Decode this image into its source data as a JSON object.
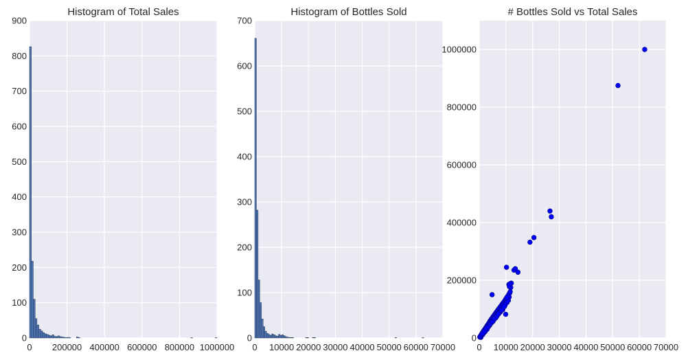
{
  "colors": {
    "panel_bg": "#EAEAF2",
    "grid": "#FFFFFF",
    "bar": "#4C72B0",
    "bar_edge": "#1A2A40",
    "point": "#0000FF",
    "point_edge": "#00007A"
  },
  "chart_data": [
    {
      "type": "bar",
      "title": "Histogram of Total Sales",
      "xlim": [
        0,
        1000000
      ],
      "ylim": [
        0,
        900
      ],
      "xticks": [
        0,
        200000,
        400000,
        600000,
        800000,
        1000000
      ],
      "xtick_labels": [
        "0",
        "200000",
        "400000",
        "600000",
        "800000",
        "1000000"
      ],
      "yticks": [
        0,
        100,
        200,
        300,
        400,
        500,
        600,
        700,
        800,
        900
      ],
      "ytick_labels": [
        "0",
        "100",
        "200",
        "300",
        "400",
        "500",
        "600",
        "700",
        "800",
        "900"
      ],
      "grid": true,
      "bin_edges_start": 0,
      "bin_width": 10000,
      "values": [
        826,
        218,
        110,
        55,
        37,
        25,
        20,
        15,
        12,
        10,
        8,
        6,
        9,
        5,
        4,
        6,
        4,
        3,
        2,
        1,
        2,
        1,
        0,
        0,
        0,
        3,
        1,
        0,
        0,
        0,
        0,
        0,
        0,
        0,
        0,
        0,
        0,
        0,
        0,
        0,
        0,
        0,
        0,
        0,
        0,
        0,
        0,
        0,
        0,
        0,
        0,
        0,
        0,
        0,
        0,
        0,
        0,
        0,
        0,
        0,
        0,
        0,
        0,
        0,
        0,
        0,
        0,
        0,
        0,
        0,
        0,
        0,
        0,
        0,
        0,
        0,
        0,
        0,
        0,
        0,
        0,
        0,
        0,
        0,
        0,
        0,
        1,
        0,
        0,
        0,
        0,
        0,
        0,
        0,
        0,
        0,
        0,
        0,
        0,
        1
      ]
    },
    {
      "type": "bar",
      "title": "Histogram of Bottles Sold",
      "xlim": [
        0,
        70000
      ],
      "ylim": [
        0,
        700
      ],
      "xticks": [
        0,
        10000,
        20000,
        30000,
        40000,
        50000,
        60000,
        70000
      ],
      "xtick_labels": [
        "0",
        "10000",
        "20000",
        "30000",
        "40000",
        "50000",
        "60000",
        "70000"
      ],
      "yticks": [
        0,
        100,
        200,
        300,
        400,
        500,
        600,
        700
      ],
      "ytick_labels": [
        "0",
        "100",
        "200",
        "300",
        "400",
        "500",
        "600",
        "700"
      ],
      "grid": true,
      "bin_edges_start": 0,
      "bin_width": 629,
      "values": [
        661,
        282,
        128,
        78,
        42,
        25,
        15,
        10,
        8,
        6,
        9,
        7,
        5,
        4,
        8,
        6,
        7,
        5,
        3,
        2,
        1,
        1,
        1,
        0,
        0,
        0,
        0,
        0,
        0,
        0,
        1,
        1,
        0,
        0,
        1,
        1,
        0,
        0,
        0,
        0,
        0,
        0,
        0,
        0,
        0,
        0,
        0,
        0,
        0,
        0,
        0,
        0,
        0,
        0,
        0,
        0,
        0,
        0,
        0,
        0,
        0,
        0,
        0,
        0,
        0,
        0,
        0,
        0,
        0,
        0,
        0,
        0,
        0,
        0,
        0,
        0,
        0,
        0,
        0,
        0,
        0,
        0,
        0,
        1,
        0,
        0,
        0,
        0,
        0,
        0,
        0,
        0,
        0,
        0,
        0,
        0,
        0,
        0,
        0,
        1
      ]
    },
    {
      "type": "scatter",
      "title": "# Bottles Sold vs Total Sales",
      "xlim": [
        0,
        70000
      ],
      "ylim": [
        0,
        1100000
      ],
      "xticks": [
        0,
        10000,
        20000,
        30000,
        40000,
        50000,
        60000,
        70000
      ],
      "xtick_labels": [
        "0",
        "10000",
        "20000",
        "30000",
        "40000",
        "50000",
        "60000",
        "70000"
      ],
      "yticks": [
        0,
        200000,
        400000,
        600000,
        800000,
        1000000
      ],
      "ytick_labels": [
        "0",
        "200000",
        "400000",
        "600000",
        "800000",
        "1000000"
      ],
      "grid": true,
      "x": [
        200,
        400,
        600,
        800,
        1000,
        1200,
        1500,
        1700,
        2000,
        2200,
        2500,
        2800,
        3000,
        3200,
        3500,
        3800,
        4000,
        4300,
        4600,
        5000,
        5300,
        5600,
        6000,
        6300,
        6700,
        7000,
        7400,
        7800,
        8200,
        8600,
        9000,
        9400,
        9800,
        10200,
        10600,
        11000,
        11400,
        600,
        1000,
        1400,
        1800,
        2300,
        2700,
        3300,
        3700,
        4200,
        4800,
        5200,
        5800,
        6400,
        6900,
        7500,
        8000,
        8500,
        9100,
        9600,
        10100,
        10700,
        11200,
        11600,
        800,
        1600,
        2400,
        3100,
        3900,
        4700,
        5500,
        6200,
        7100,
        7900,
        8800,
        9500,
        10400,
        10900,
        11800,
        1200,
        2100,
        2900,
        3600,
        4400,
        5100,
        5900,
        6600,
        7300,
        8100,
        8900,
        9700,
        10500,
        11100,
        12000,
        300,
        500,
        900,
        1300,
        1900,
        2600,
        3400,
        4100,
        4900,
        5700,
        6500,
        7200,
        8300,
        9300,
        10300,
        11300,
        11500,
        4800,
        9900,
        10200,
        13000,
        13500,
        14500,
        19000,
        20500,
        26500,
        27000,
        52000,
        62000
      ],
      "y": [
        3000,
        6000,
        9000,
        12000,
        15000,
        18000,
        22000,
        25000,
        29000,
        32000,
        36000,
        40000,
        43000,
        46000,
        50000,
        54000,
        58000,
        62000,
        66000,
        71000,
        75000,
        79000,
        84000,
        88000,
        93000,
        97000,
        102000,
        107000,
        112000,
        117000,
        122000,
        127000,
        133000,
        138000,
        144000,
        150000,
        156000,
        2000,
        10000,
        14000,
        20000,
        27000,
        31000,
        38000,
        47000,
        52000,
        60000,
        65000,
        72000,
        80000,
        85000,
        93000,
        100000,
        106000,
        114000,
        120000,
        126000,
        134000,
        142000,
        160000,
        8000,
        17000,
        26000,
        35000,
        44000,
        55000,
        63000,
        70000,
        82000,
        90000,
        98000,
        110000,
        123000,
        130000,
        175000,
        11000,
        21000,
        30000,
        41000,
        51000,
        57000,
        69000,
        76000,
        87000,
        95000,
        104000,
        115000,
        128000,
        185000,
        190000,
        4000,
        7000,
        13000,
        16000,
        24000,
        33000,
        39000,
        48000,
        56000,
        67000,
        74000,
        83000,
        96000,
        108000,
        140000,
        178000,
        188000,
        150000,
        82000,
        245000,
        235000,
        240000,
        228000,
        332000,
        348000,
        440000,
        420000,
        875000,
        1000000
      ]
    }
  ]
}
